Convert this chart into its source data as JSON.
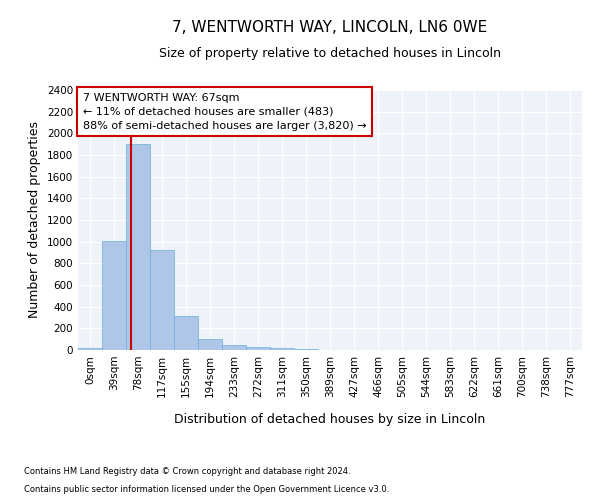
{
  "title": "7, WENTWORTH WAY, LINCOLN, LN6 0WE",
  "subtitle": "Size of property relative to detached houses in Lincoln",
  "xlabel": "Distribution of detached houses by size in Lincoln",
  "ylabel": "Number of detached properties",
  "bar_color": "#aec6e8",
  "bar_edge_color": "#6baed6",
  "categories": [
    "0sqm",
    "39sqm",
    "78sqm",
    "117sqm",
    "155sqm",
    "194sqm",
    "233sqm",
    "272sqm",
    "311sqm",
    "350sqm",
    "389sqm",
    "427sqm",
    "466sqm",
    "505sqm",
    "544sqm",
    "583sqm",
    "622sqm",
    "661sqm",
    "700sqm",
    "738sqm",
    "777sqm"
  ],
  "values": [
    15,
    1010,
    1900,
    920,
    310,
    105,
    45,
    25,
    20,
    12,
    0,
    0,
    0,
    0,
    0,
    0,
    0,
    0,
    0,
    0,
    0
  ],
  "ylim": [
    0,
    2400
  ],
  "yticks": [
    0,
    200,
    400,
    600,
    800,
    1000,
    1200,
    1400,
    1600,
    1800,
    2000,
    2200,
    2400
  ],
  "annotation_text": "7 WENTWORTH WAY: 67sqm\n← 11% of detached houses are smaller (483)\n88% of semi-detached houses are larger (3,820) →",
  "annotation_box_color": "#ffffff",
  "annotation_box_edge_color": "#cc0000",
  "vline_color": "#cc0000",
  "footnote1": "Contains HM Land Registry data © Crown copyright and database right 2024.",
  "footnote2": "Contains public sector information licensed under the Open Government Licence v3.0.",
  "bg_color": "#eef2f9",
  "grid_color": "#ffffff",
  "title_fontsize": 11,
  "subtitle_fontsize": 9,
  "tick_fontsize": 7.5,
  "ylabel_fontsize": 9,
  "xlabel_fontsize": 9,
  "annotation_fontsize": 8,
  "footnote_fontsize": 6
}
